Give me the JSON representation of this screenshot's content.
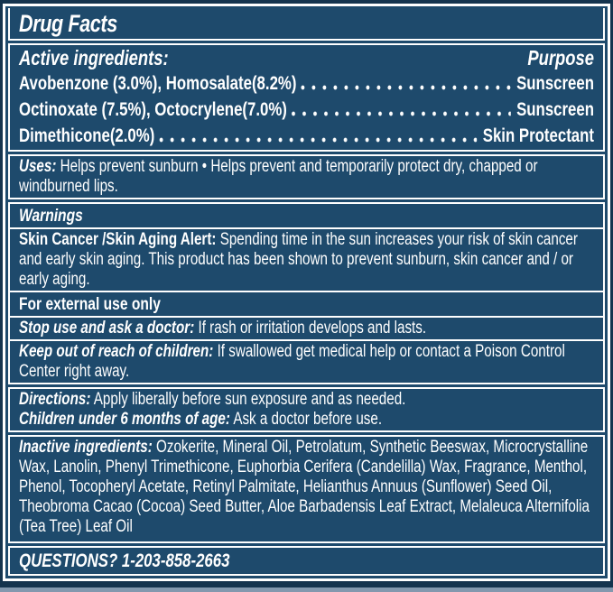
{
  "colors": {
    "panel_navy": "#1e4a6c",
    "outer_navy": "#15344e",
    "rule_white": "#ffffff",
    "text_white": "#ffffff",
    "bottom_strip": "#8398ae"
  },
  "title": "Drug Facts",
  "active_ingredients": {
    "heading": "Active ingredients:",
    "purpose_label": "Purpose",
    "rows": [
      {
        "name": "Avobenzone (3.0%), Homosalate(8.2%)",
        "purpose": "Sunscreen"
      },
      {
        "name": "Octinoxate (7.5%), Octocrylene(7.0%)",
        "purpose": "Sunscreen"
      },
      {
        "name": "Dimethicone(2.0%)",
        "purpose": "Skin Protectant"
      }
    ]
  },
  "uses": {
    "label": "Uses:",
    "text": "Helps prevent sunburn • Helps prevent and temporarily protect dry, chapped or windburned lips."
  },
  "warnings": {
    "heading": "Warnings",
    "alert_label": "Skin Cancer /Skin Aging Alert:",
    "alert_text": "Spending time in the sun increases your risk of skin cancer and early skin aging. This product has been shown to prevent sunburn, skin cancer and / or early aging.",
    "external_use": "For external use only",
    "stop_use_label": "Stop use and ask a doctor:",
    "stop_use_text": "If rash or irritation develops and lasts.",
    "keep_out_label": "Keep out of reach of children:",
    "keep_out_text": "If swallowed get medical help or contact a Poison Control Center right away."
  },
  "directions": {
    "label": "Directions:",
    "text": "Apply liberally before sun exposure and as needed.",
    "children_label": "Children under 6 months of age:",
    "children_text": "Ask a doctor before use."
  },
  "inactive_ingredients": {
    "label": "Inactive ingredients:",
    "text": "Ozokerite, Mineral Oil, Petrolatum, Synthetic Beeswax, Microcrystalline Wax, Lanolin, Phenyl Trimethicone, Euphorbia Cerifera (Candelilla) Wax, Fragrance, Menthol, Phenol, Tocopheryl Acetate, Retinyl Palmitate, Helianthus Annuus (Sunflower) Seed Oil, Theobroma Cacao (Cocoa) Seed Butter, Aloe Barbadensis Leaf Extract, Melaleuca Alternifolia (Tea Tree) Leaf Oil"
  },
  "questions": {
    "label": "QUESTIONS?",
    "phone": "1-203-858-2663"
  }
}
